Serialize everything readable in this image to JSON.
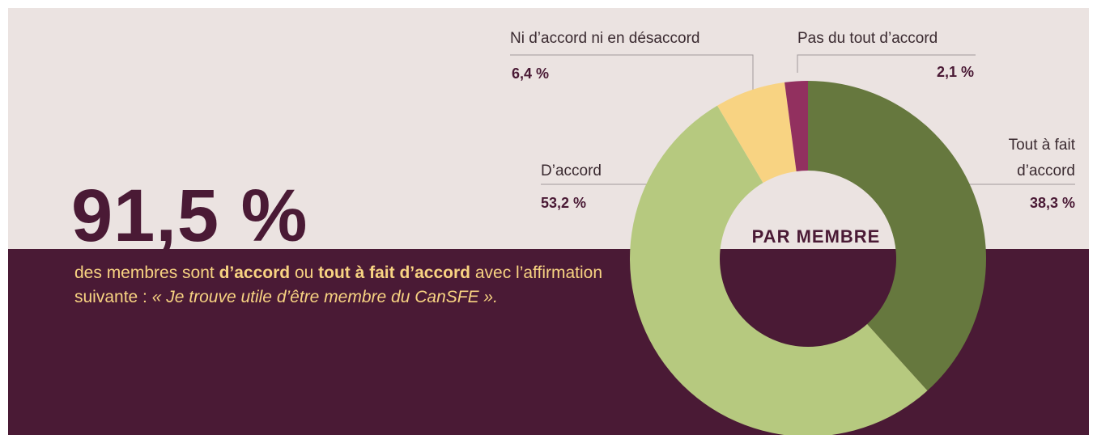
{
  "headline": "91,5 %",
  "description": [
    "des membres sont ",
    "d’accord",
    " ou ",
    "tout à fait d’accord",
    " avec l’affirmation suivante : ",
    "« Je trouve utile d’être membre du CanSFE »."
  ],
  "chart_data": {
    "type": "pie",
    "donut": true,
    "center_label": "PAR MEMBRE",
    "categories": [
      "Tout à fait d’accord",
      "D’accord",
      "Ni d’accord ni en désaccord",
      "Pas du tout d’accord"
    ],
    "values": [
      38.3,
      53.2,
      6.4,
      2.1
    ],
    "value_labels": [
      "38,3 %",
      "53,2 %",
      "6,4 %",
      "2,1 %"
    ],
    "colors": [
      "#66783e",
      "#b6c97f",
      "#f8d382",
      "#92305f"
    ]
  }
}
